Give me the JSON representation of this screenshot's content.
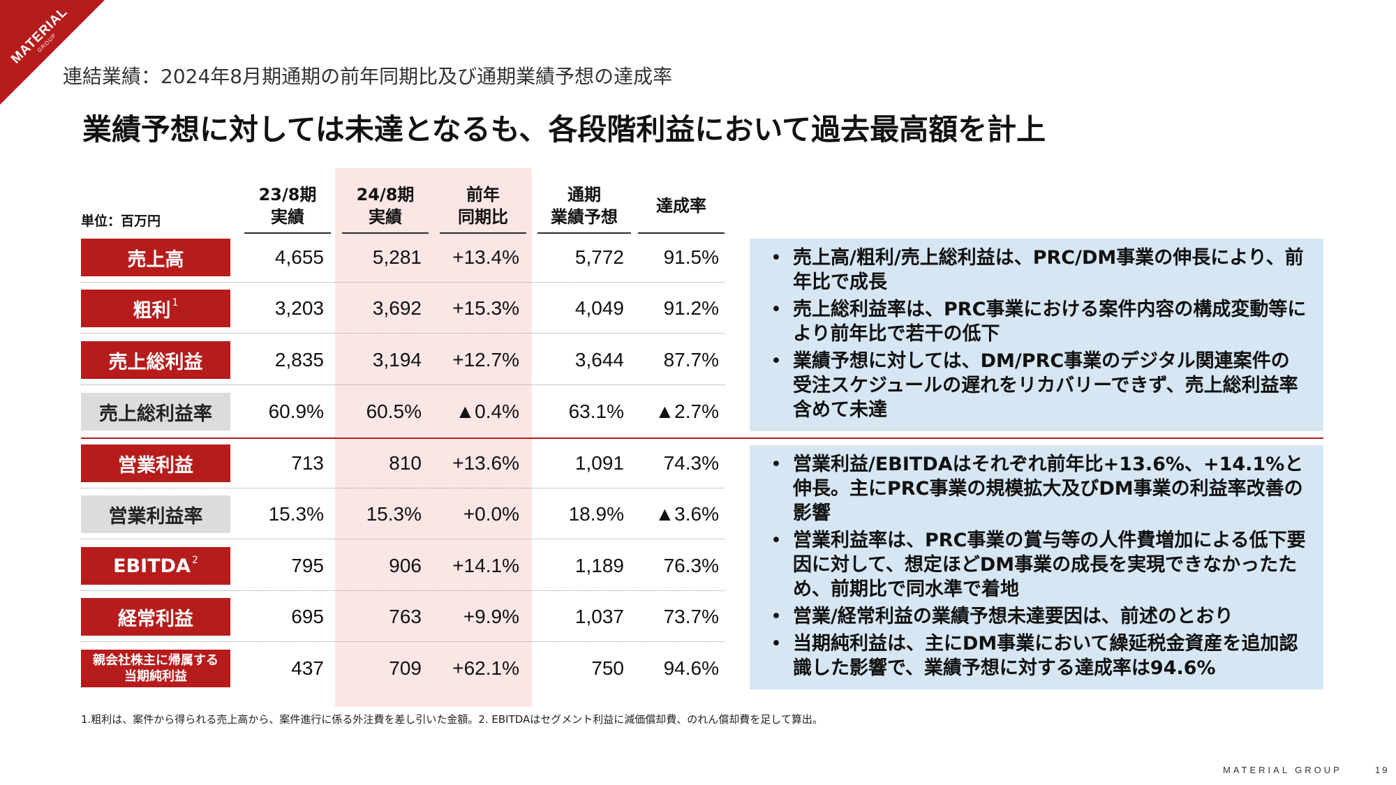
{
  "brand": {
    "corner_logo": "MATERIAL",
    "corner_logo_sub": "GROUP",
    "footer": "MATERIAL GROUP",
    "page_number": "19",
    "accent_color": "#b71c1c",
    "highlight_color": "#fbe6e6",
    "box_color": "#d6e6f2"
  },
  "subtitle": "連結業績：2024年8月期通期の前年同期比及び通期業績予想の達成率",
  "headline": "業績予想に対しては未達となるも、各段階利益において過去最高額を計上",
  "table": {
    "unit_label": "単位：百万円",
    "columns": [
      {
        "line1": "23/8期",
        "line2": "実績"
      },
      {
        "line1": "24/8期",
        "line2": "実績"
      },
      {
        "line1": "前年",
        "line2": "同期比"
      },
      {
        "line1": "通期",
        "line2": "業績予想"
      },
      {
        "line1": "",
        "line2": "達成率"
      }
    ],
    "rows": [
      {
        "label": "売上高",
        "sup": "",
        "label2": "",
        "style": "red",
        "values": [
          "4,655",
          "5,281",
          "+13.4%",
          "5,772",
          "91.5%"
        ]
      },
      {
        "label": "粗利",
        "sup": "1",
        "label2": "",
        "style": "red",
        "values": [
          "3,203",
          "3,692",
          "+15.3%",
          "4,049",
          "91.2%"
        ]
      },
      {
        "label": "売上総利益",
        "sup": "",
        "label2": "",
        "style": "red",
        "values": [
          "2,835",
          "3,194",
          "+12.7%",
          "3,644",
          "87.7%"
        ]
      },
      {
        "label": "売上総利益率",
        "sup": "",
        "label2": "",
        "style": "gray",
        "values": [
          "60.9%",
          "60.5%",
          "▲0.4%",
          "63.1%",
          "▲2.7%"
        ]
      },
      {
        "label": "営業利益",
        "sup": "",
        "label2": "",
        "style": "red",
        "values": [
          "713",
          "810",
          "+13.6%",
          "1,091",
          "74.3%"
        ]
      },
      {
        "label": "営業利益率",
        "sup": "",
        "label2": "",
        "style": "gray",
        "values": [
          "15.3%",
          "15.3%",
          "+0.0%",
          "18.9%",
          "▲3.6%"
        ]
      },
      {
        "label": "EBITDA",
        "sup": "2",
        "label2": "",
        "style": "red",
        "values": [
          "795",
          "906",
          "+14.1%",
          "1,189",
          "76.3%"
        ]
      },
      {
        "label": "経常利益",
        "sup": "",
        "label2": "",
        "style": "red",
        "values": [
          "695",
          "763",
          "+9.9%",
          "1,037",
          "73.7%"
        ]
      },
      {
        "label": "親会社株主に帰属する",
        "sup": "",
        "label2": "当期純利益",
        "style": "red",
        "values": [
          "437",
          "709",
          "+62.1%",
          "750",
          "94.6%"
        ]
      }
    ]
  },
  "commentary": {
    "top": [
      "売上高/粗利/売上総利益は、PRC/DM事業の伸長により、前年比で成長",
      "売上総利益率は、PRC事業における案件内容の構成変動等により前年比で若干の低下",
      "業績予想に対しては、DM/PRC事業のデジタル関連案件の受注スケジュールの遅れをリカバリーできず、売上総利益率含めて未達"
    ],
    "bottom": [
      "営業利益/EBITDAはそれぞれ前年比+13.6%、+14.1%と伸長。主にPRC事業の規模拡大及びDM事業の利益率改善の影響",
      "営業利益率は、PRC事業の賞与等の人件費増加による低下要因に対して、想定ほどDM事業の成長を実現できなかったため、前期比で同水準で着地",
      "営業/経常利益の業績予想未達要因は、前述のとおり",
      "当期純利益は、主にDM事業において繰延税金資産を追加認識した影響で、業績予想に対する達成率は94.6%"
    ]
  },
  "footnote": "1.粗利は、案件から得られる売上高から、案件進行に係る外注費を差し引いた金額。2. EBITDAはセグメント利益に減価償却費、のれん償却費を足して算出。"
}
